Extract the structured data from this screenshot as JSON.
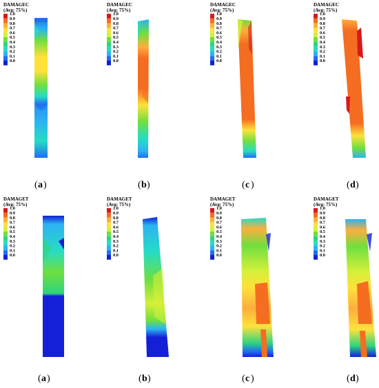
{
  "legend": {
    "subtitle": "(Avg: 75%)",
    "ticks": [
      "1.0",
      "0.9",
      "0.8",
      "0.7",
      "0.6",
      "0.5",
      "0.4",
      "0.3",
      "0.2",
      "0.1",
      "0.0"
    ],
    "colors": [
      "#d7191c",
      "#f46d21",
      "#fdae3d",
      "#fee13b",
      "#d4f03a",
      "#6fdf3f",
      "#2fd47f",
      "#26dcc4",
      "#2cb3f2",
      "#1f6ff0",
      "#1320d6"
    ]
  },
  "rows": [
    {
      "variable": "DAMAGEC",
      "panels": [
        {
          "caption_letter": "a"
        },
        {
          "caption_letter": "b"
        },
        {
          "caption_letter": "c"
        },
        {
          "caption_letter": "d"
        }
      ]
    },
    {
      "variable": "DAMAGET",
      "panels": [
        {
          "caption_letter": "a"
        },
        {
          "caption_letter": "b"
        },
        {
          "caption_letter": "c"
        },
        {
          "caption_letter": "d"
        }
      ]
    }
  ]
}
